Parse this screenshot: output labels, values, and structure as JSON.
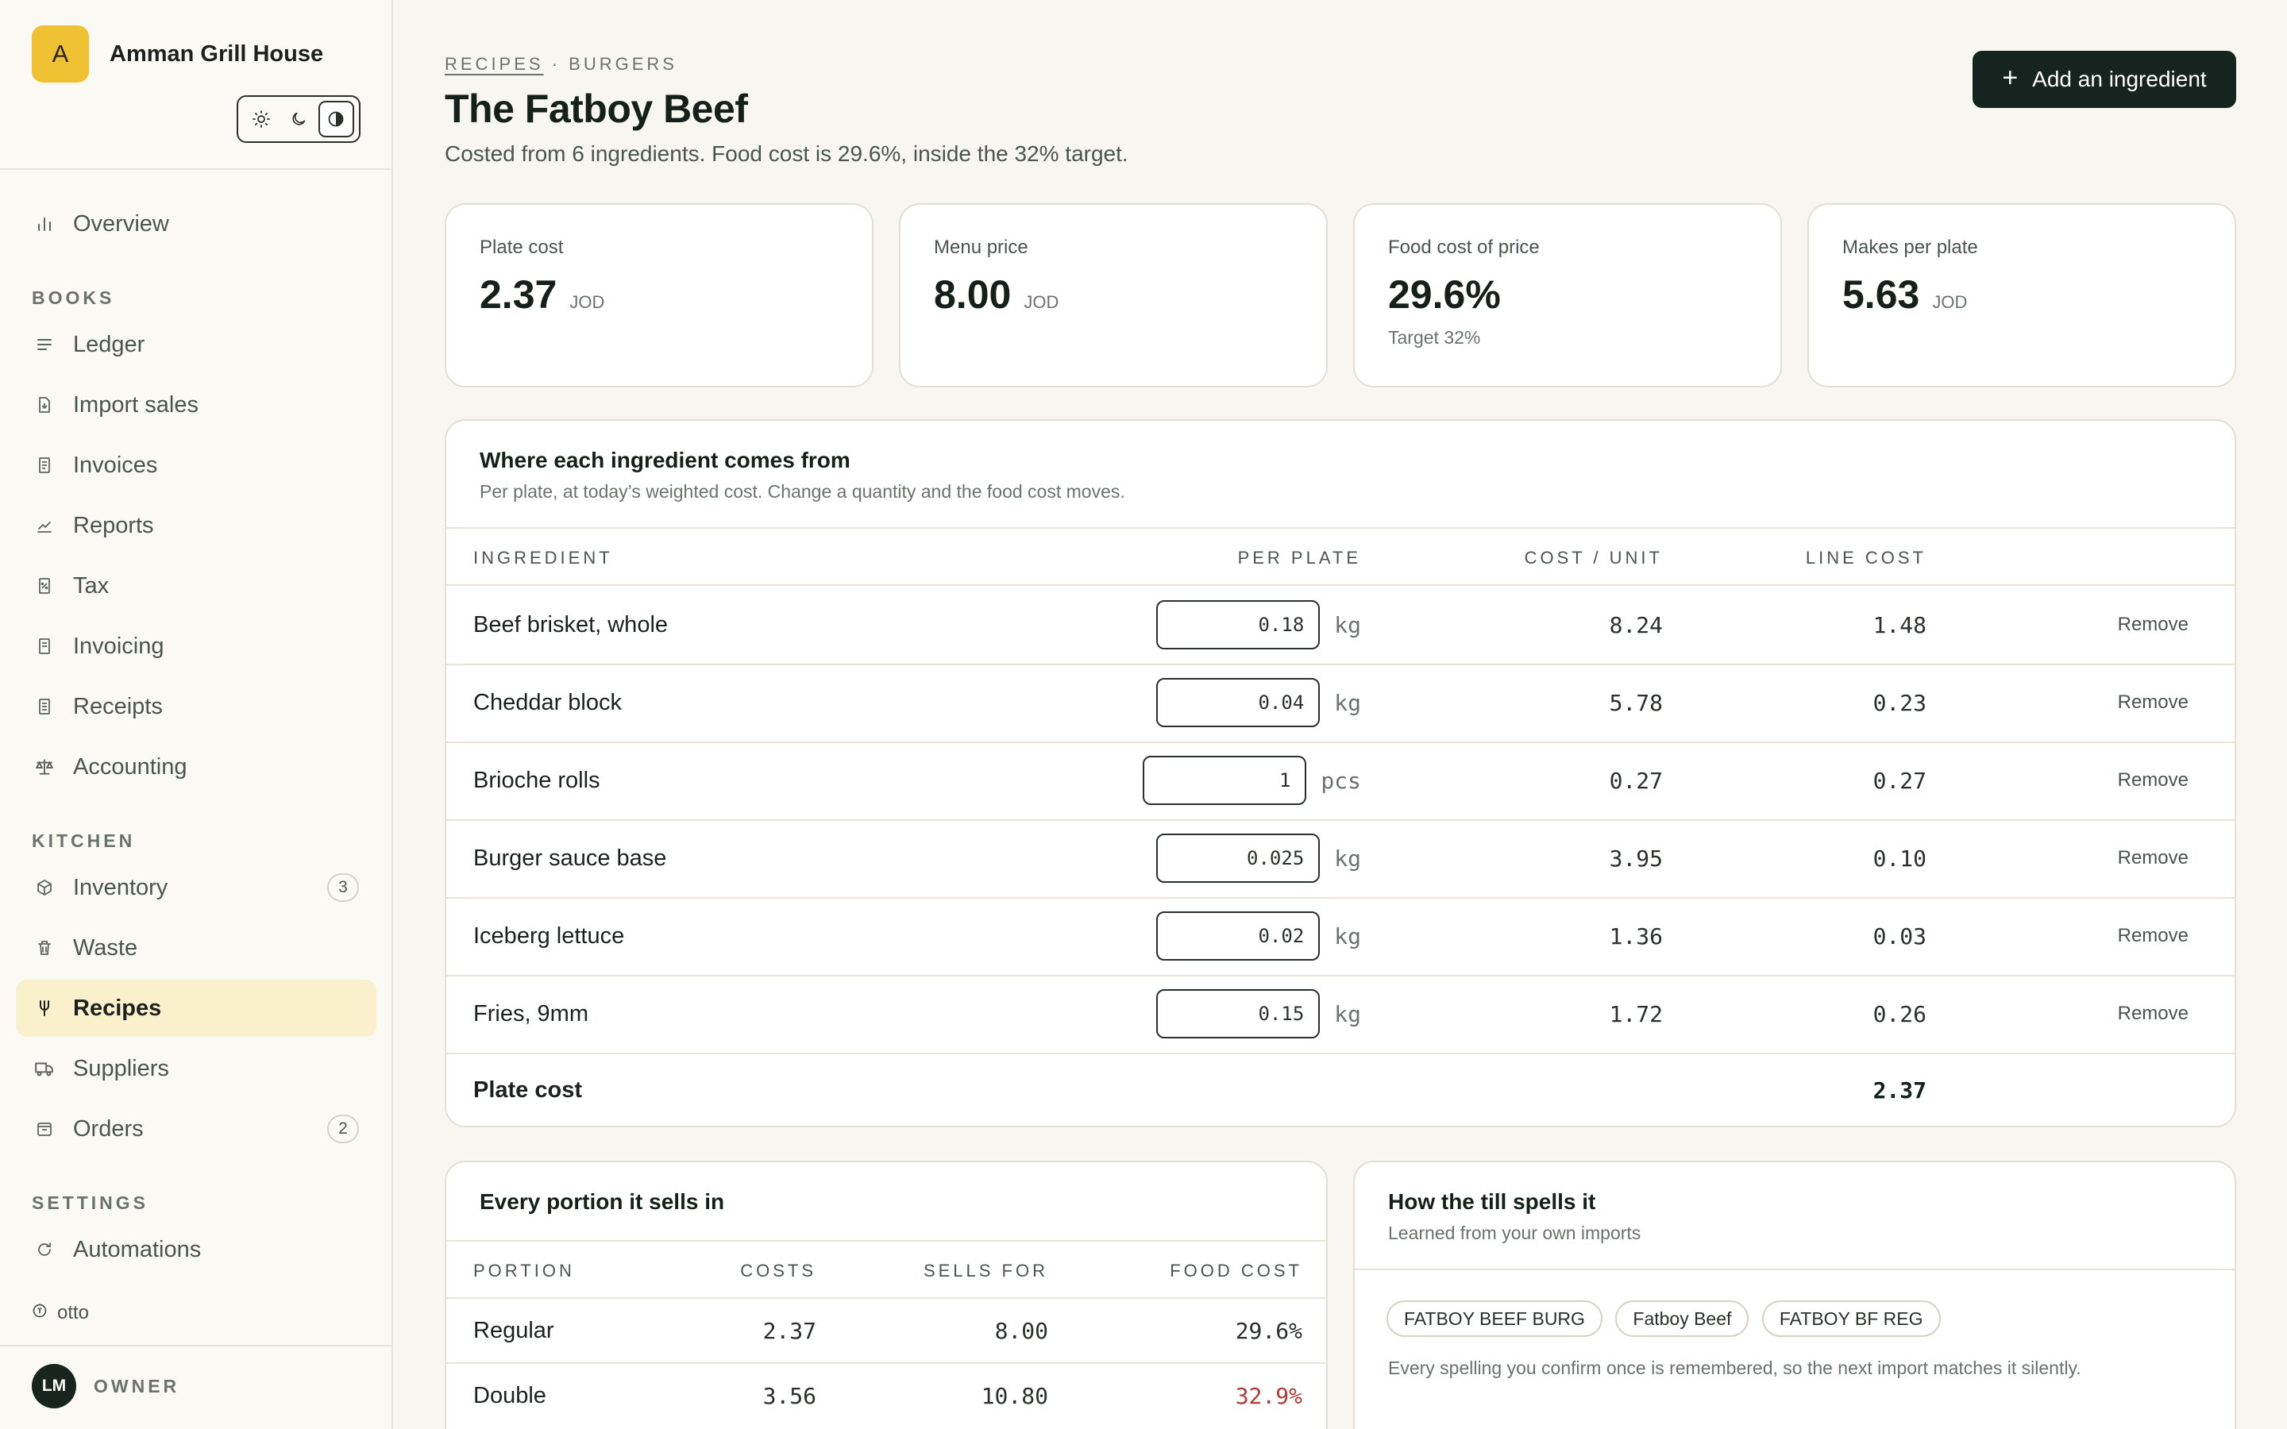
{
  "brand": {
    "logo_letter": "A",
    "name": "Amman Grill House"
  },
  "theme_toggle": {
    "options": [
      "sun-icon",
      "moon-icon",
      "contrast-icon"
    ],
    "active": "contrast-icon"
  },
  "sidebar": {
    "overview": {
      "label": "Overview",
      "icon": "bar-chart-icon"
    },
    "sections": [
      {
        "label": "BOOKS",
        "items": [
          {
            "label": "Ledger",
            "icon": "list-icon"
          },
          {
            "label": "Import sales",
            "icon": "file-import-icon"
          },
          {
            "label": "Invoices",
            "icon": "receipt-icon"
          },
          {
            "label": "Reports",
            "icon": "trend-icon"
          },
          {
            "label": "Tax",
            "icon": "tax-document-icon"
          },
          {
            "label": "Invoicing",
            "icon": "receipt-icon"
          },
          {
            "label": "Receipts",
            "icon": "receipt-icon"
          },
          {
            "label": "Accounting",
            "icon": "scale-icon"
          }
        ]
      },
      {
        "label": "KITCHEN",
        "items": [
          {
            "label": "Inventory",
            "icon": "box-icon",
            "badge": "3"
          },
          {
            "label": "Waste",
            "icon": "trash-icon"
          },
          {
            "label": "Recipes",
            "icon": "fork-icon",
            "active": true
          },
          {
            "label": "Suppliers",
            "icon": "truck-icon"
          },
          {
            "label": "Orders",
            "icon": "inbox-icon",
            "badge": "2"
          }
        ]
      },
      {
        "label": "SETTINGS",
        "items": [
          {
            "label": "Automations",
            "icon": "refresh-icon"
          }
        ]
      }
    ],
    "otto_label": "otto",
    "user": {
      "initials": "LM",
      "role": "OWNER"
    }
  },
  "header": {
    "breadcrumb": {
      "parent": "RECIPES",
      "separator": "·",
      "current": "BURGERS"
    },
    "title": "The Fatboy Beef",
    "subtitle": "Costed from 6 ingredients. Food cost is 29.6%, inside the 32% target.",
    "add_button_label": "Add an ingredient"
  },
  "stats": [
    {
      "label": "Plate cost",
      "value": "2.37",
      "unit": "JOD"
    },
    {
      "label": "Menu price",
      "value": "8.00",
      "unit": "JOD"
    },
    {
      "label": "Food cost of price",
      "value": "29.6%",
      "sub": "Target 32%"
    },
    {
      "label": "Makes per plate",
      "value": "5.63",
      "unit": "JOD"
    }
  ],
  "ingredients_panel": {
    "title": "Where each ingredient comes from",
    "subtitle": "Per plate, at today’s weighted cost. Change a quantity and the food cost moves.",
    "columns": [
      "INGREDIENT",
      "PER PLATE",
      "COST / UNIT",
      "LINE COST"
    ],
    "rows": [
      {
        "name": "Beef brisket, whole",
        "qty": "0.18",
        "unit": "kg",
        "cost_unit": "8.24",
        "line_cost": "1.48",
        "action": "Remove"
      },
      {
        "name": "Cheddar block",
        "qty": "0.04",
        "unit": "kg",
        "cost_unit": "5.78",
        "line_cost": "0.23",
        "action": "Remove"
      },
      {
        "name": "Brioche rolls",
        "qty": "1",
        "unit": "pcs",
        "cost_unit": "0.27",
        "line_cost": "0.27",
        "action": "Remove"
      },
      {
        "name": "Burger sauce base",
        "qty": "0.025",
        "unit": "kg",
        "cost_unit": "3.95",
        "line_cost": "0.10",
        "action": "Remove"
      },
      {
        "name": "Iceberg lettuce",
        "qty": "0.02",
        "unit": "kg",
        "cost_unit": "1.36",
        "line_cost": "0.03",
        "action": "Remove"
      },
      {
        "name": "Fries, 9mm",
        "qty": "0.15",
        "unit": "kg",
        "cost_unit": "1.72",
        "line_cost": "0.26",
        "action": "Remove"
      }
    ],
    "total_label": "Plate cost",
    "total_value": "2.37"
  },
  "portions_panel": {
    "title": "Every portion it sells in",
    "columns": [
      "PORTION",
      "COSTS",
      "SELLS FOR",
      "FOOD COST"
    ],
    "rows": [
      {
        "portion": "Regular",
        "costs": "2.37",
        "sells_for": "8.00",
        "food_cost": "29.6%",
        "over_target": false
      },
      {
        "portion": "Double",
        "costs": "3.56",
        "sells_for": "10.80",
        "food_cost": "32.9%",
        "over_target": true
      }
    ],
    "warning_color": "#b23b35"
  },
  "till_panel": {
    "title": "How the till spells it",
    "subtitle": "Learned from your own imports",
    "chips": [
      "FATBOY BEEF BURG",
      "Fatboy Beef",
      "FATBOY BF REG"
    ],
    "note": "Every spelling you confirm once is remembered, so the next import matches it silently."
  },
  "colors": {
    "accent_dark": "#15241e",
    "brand_yellow": "#f0c233",
    "active_nav_bg": "#fbf0cc",
    "background": "#f8f6f0"
  }
}
